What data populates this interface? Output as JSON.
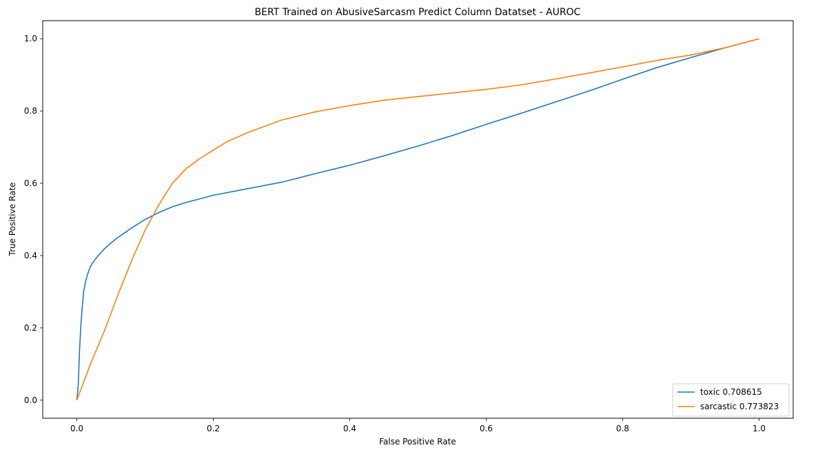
{
  "chart_data": {
    "type": "line",
    "title": "BERT Trained on AbusiveSarcasm Predict Column Datatset - AUROC",
    "xlabel": "False Positive Rate",
    "ylabel": "True Positive Rate",
    "xlim": [
      -0.05,
      1.05
    ],
    "ylim": [
      -0.05,
      1.05
    ],
    "xticks": [
      0.0,
      0.2,
      0.4,
      0.6,
      0.8,
      1.0
    ],
    "xtick_labels": [
      "0.0",
      "0.2",
      "0.4",
      "0.6",
      "0.8",
      "1.0"
    ],
    "yticks": [
      0.0,
      0.2,
      0.4,
      0.6,
      0.8,
      1.0
    ],
    "ytick_labels": [
      "0.0",
      "0.2",
      "0.4",
      "0.6",
      "0.8",
      "1.0"
    ],
    "grid": false,
    "legend_position": "lower-right",
    "series": [
      {
        "name": "toxic 0.708615",
        "color": "#1f77b4",
        "x": [
          0.0,
          0.002,
          0.004,
          0.006,
          0.008,
          0.01,
          0.013,
          0.016,
          0.02,
          0.025,
          0.03,
          0.04,
          0.05,
          0.06,
          0.07,
          0.08,
          0.09,
          0.1,
          0.12,
          0.14,
          0.16,
          0.18,
          0.2,
          0.25,
          0.3,
          0.35,
          0.4,
          0.45,
          0.5,
          0.55,
          0.6,
          0.65,
          0.7,
          0.75,
          0.8,
          0.85,
          0.9,
          0.95,
          1.0
        ],
        "y": [
          0.0,
          0.04,
          0.14,
          0.21,
          0.26,
          0.3,
          0.33,
          0.35,
          0.37,
          0.385,
          0.397,
          0.418,
          0.435,
          0.45,
          0.463,
          0.476,
          0.488,
          0.5,
          0.519,
          0.535,
          0.547,
          0.557,
          0.567,
          0.585,
          0.603,
          0.627,
          0.65,
          0.676,
          0.703,
          0.732,
          0.763,
          0.793,
          0.824,
          0.855,
          0.888,
          0.92,
          0.948,
          0.975,
          1.0
        ]
      },
      {
        "name": "sarcastic 0.773823",
        "color": "#ff7f0e",
        "x": [
          0.0,
          0.02,
          0.04,
          0.06,
          0.08,
          0.1,
          0.12,
          0.14,
          0.16,
          0.18,
          0.2,
          0.22,
          0.25,
          0.3,
          0.35,
          0.4,
          0.45,
          0.5,
          0.55,
          0.6,
          0.65,
          0.7,
          0.75,
          0.8,
          0.85,
          0.9,
          0.95,
          1.0
        ],
        "y": [
          0.0,
          0.1,
          0.19,
          0.29,
          0.385,
          0.47,
          0.54,
          0.6,
          0.64,
          0.668,
          0.692,
          0.715,
          0.74,
          0.775,
          0.798,
          0.815,
          0.83,
          0.84,
          0.85,
          0.86,
          0.872,
          0.888,
          0.905,
          0.922,
          0.94,
          0.955,
          0.975,
          1.0
        ]
      }
    ]
  }
}
